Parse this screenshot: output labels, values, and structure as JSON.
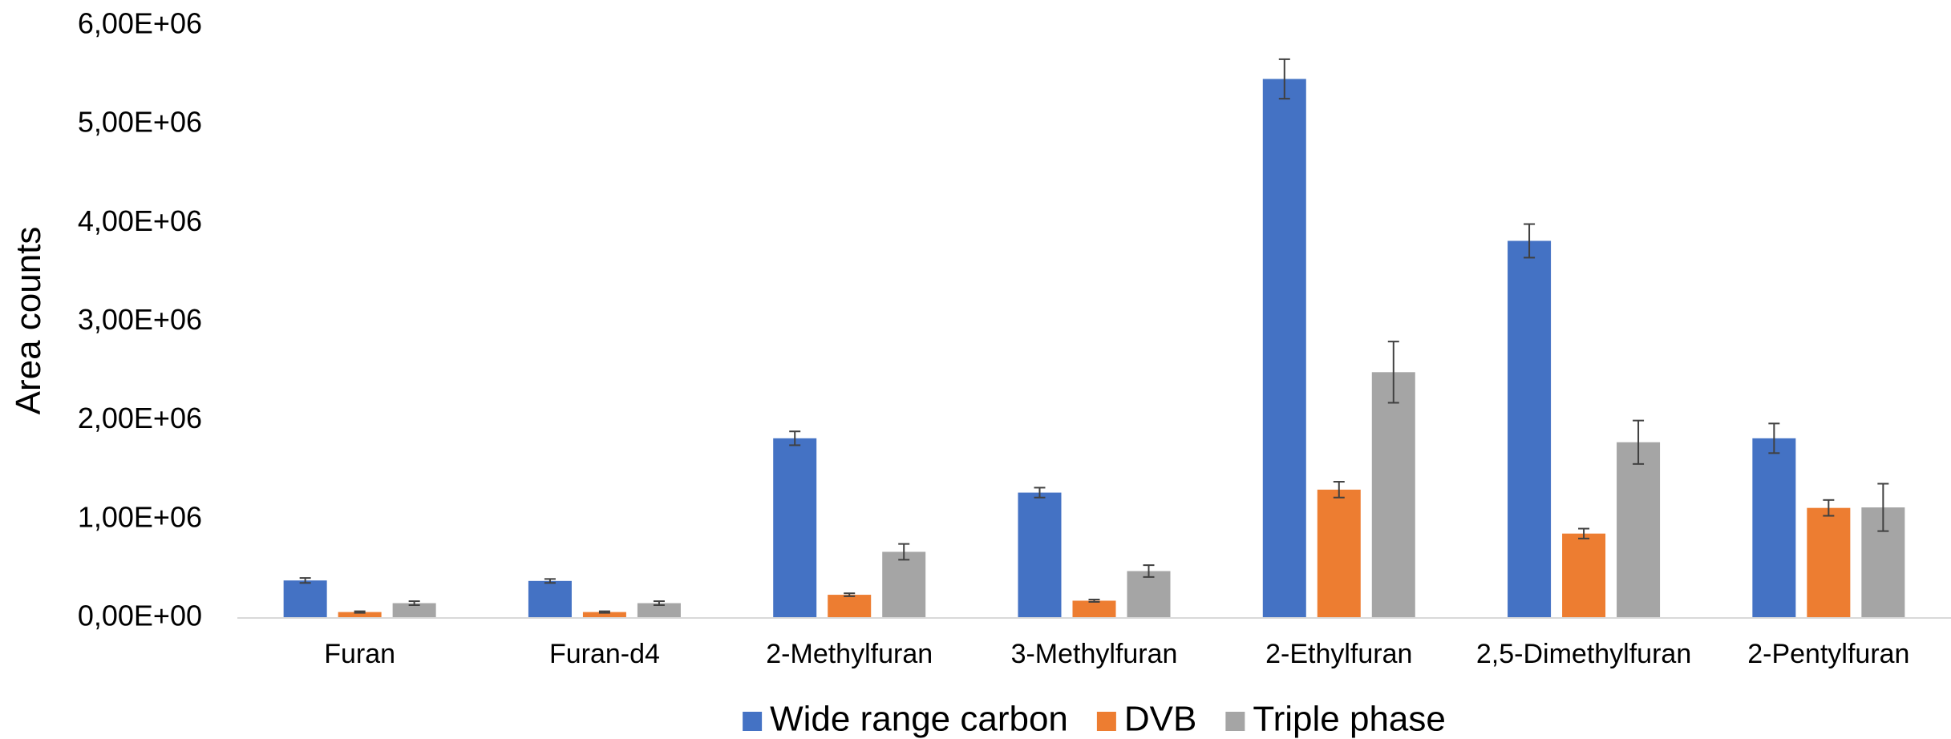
{
  "chart_data": {
    "type": "bar",
    "title": "",
    "xlabel": "",
    "ylabel": "Area counts",
    "ylim": [
      0,
      6000000
    ],
    "yticks": [
      0,
      1000000,
      2000000,
      3000000,
      4000000,
      5000000,
      6000000
    ],
    "ytick_labels": [
      "0,00E+00",
      "1,00E+06",
      "2,00E+06",
      "3,00E+06",
      "4,00E+06",
      "5,00E+06",
      "6,00E+06"
    ],
    "grid": false,
    "legend_position": "bottom",
    "categories": [
      "Furan",
      "Furan-d4",
      "2-Methylfuran",
      "3-Methylfuran",
      "2-Ethylfuran",
      "2,5-Dimethylfuran",
      "2-Pentylfuran"
    ],
    "series": [
      {
        "name": "Wide range carbon",
        "color": "#4472C4",
        "values": [
          380000,
          375000,
          1820000,
          1270000,
          5460000,
          3820000,
          1820000
        ],
        "errors": [
          25000,
          20000,
          70000,
          50000,
          200000,
          170000,
          150000
        ]
      },
      {
        "name": "DVB",
        "color": "#ED7D31",
        "values": [
          60000,
          60000,
          235000,
          175000,
          1300000,
          855000,
          1115000
        ],
        "errors": [
          8000,
          8000,
          15000,
          12000,
          80000,
          50000,
          80000
        ]
      },
      {
        "name": "Triple phase",
        "color": "#A5A5A5",
        "values": [
          150000,
          150000,
          670000,
          475000,
          2490000,
          1780000,
          1120000
        ],
        "errors": [
          20000,
          20000,
          80000,
          60000,
          310000,
          220000,
          240000
        ]
      }
    ]
  }
}
